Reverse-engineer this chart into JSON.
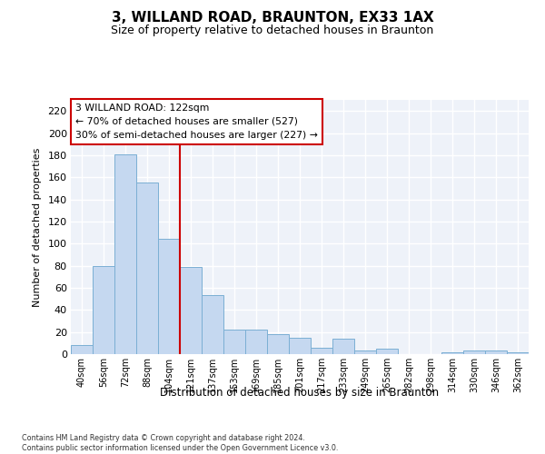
{
  "title1": "3, WILLAND ROAD, BRAUNTON, EX33 1AX",
  "title2": "Size of property relative to detached houses in Braunton",
  "xlabel": "Distribution of detached houses by size in Braunton",
  "ylabel": "Number of detached properties",
  "categories": [
    "40sqm",
    "56sqm",
    "72sqm",
    "88sqm",
    "104sqm",
    "121sqm",
    "137sqm",
    "153sqm",
    "169sqm",
    "185sqm",
    "201sqm",
    "217sqm",
    "233sqm",
    "249sqm",
    "265sqm",
    "282sqm",
    "298sqm",
    "314sqm",
    "330sqm",
    "346sqm",
    "362sqm"
  ],
  "values": [
    8,
    80,
    181,
    155,
    104,
    79,
    53,
    22,
    22,
    18,
    15,
    6,
    14,
    3,
    5,
    0,
    0,
    2,
    3,
    3,
    2
  ],
  "bar_color": "#c5d8f0",
  "bar_edge_color": "#7bafd4",
  "vline_index": 5,
  "vline_color": "#cc0000",
  "annotation_line1": "3 WILLAND ROAD: 122sqm",
  "annotation_line2": "← 70% of detached houses are smaller (527)",
  "annotation_line3": "30% of semi-detached houses are larger (227) →",
  "annotation_box_edgecolor": "#cc0000",
  "ylim": [
    0,
    230
  ],
  "yticks": [
    0,
    20,
    40,
    60,
    80,
    100,
    120,
    140,
    160,
    180,
    200,
    220
  ],
  "plot_bg_color": "#eef2f9",
  "footer": "Contains HM Land Registry data © Crown copyright and database right 2024.\nContains public sector information licensed under the Open Government Licence v3.0.",
  "figsize": [
    6.0,
    5.0
  ],
  "dpi": 100
}
